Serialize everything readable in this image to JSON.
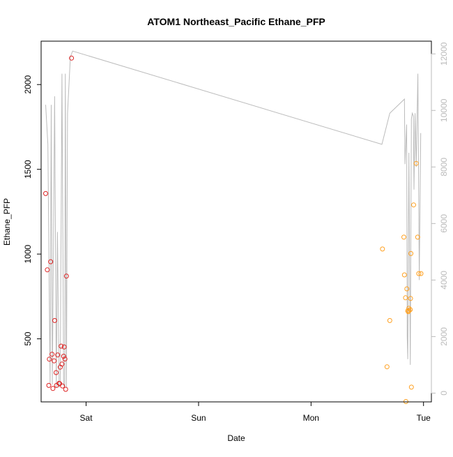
{
  "chart_data": {
    "type": "scatter",
    "title": "ATOM1 Northeast_Pacific Ethane_PFP",
    "xlabel": "Date",
    "ylabel": "Ethane_PFP",
    "x_ticks": [
      {
        "label": "Sat",
        "day": 1.0
      },
      {
        "label": "Sun",
        "day": 2.0
      },
      {
        "label": "Mon",
        "day": 3.0
      },
      {
        "label": "Tue",
        "day": 4.0
      }
    ],
    "xlim_days": [
      0.6,
      4.07
    ],
    "ylim": [
      128,
      2256
    ],
    "y_ticks": [
      500,
      1000,
      1500,
      2000
    ],
    "y2lim": [
      -310,
      12450
    ],
    "y2_ticks": [
      0,
      2000,
      4000,
      6000,
      8000,
      10000,
      12000
    ],
    "colors": {
      "series_red": "#dd2222",
      "series_orange": "#ffa020",
      "secondary_line": "#bbbbbb",
      "axis": "#000000",
      "secondary_axis": "#bbbbbb"
    },
    "series": [
      {
        "color": "series_red",
        "points": [
          {
            "day": 0.64,
            "y": 1357
          },
          {
            "day": 0.655,
            "y": 907
          },
          {
            "day": 0.668,
            "y": 225
          },
          {
            "day": 0.673,
            "y": 380
          },
          {
            "day": 0.685,
            "y": 955
          },
          {
            "day": 0.697,
            "y": 409
          },
          {
            "day": 0.705,
            "y": 207
          },
          {
            "day": 0.715,
            "y": 370
          },
          {
            "day": 0.721,
            "y": 608
          },
          {
            "day": 0.733,
            "y": 301
          },
          {
            "day": 0.737,
            "y": 225
          },
          {
            "day": 0.747,
            "y": 405
          },
          {
            "day": 0.76,
            "y": 237
          },
          {
            "day": 0.765,
            "y": 236
          },
          {
            "day": 0.77,
            "y": 333
          },
          {
            "day": 0.778,
            "y": 457
          },
          {
            "day": 0.785,
            "y": 351
          },
          {
            "day": 0.79,
            "y": 222
          },
          {
            "day": 0.8,
            "y": 397
          },
          {
            "day": 0.805,
            "y": 452
          },
          {
            "day": 0.812,
            "y": 381
          },
          {
            "day": 0.818,
            "y": 202
          },
          {
            "day": 0.825,
            "y": 870
          },
          {
            "day": 0.87,
            "y": 2156
          }
        ]
      },
      {
        "color": "series_orange",
        "points": [
          {
            "day": 3.635,
            "y": 1030
          },
          {
            "day": 3.675,
            "y": 335
          },
          {
            "day": 3.7,
            "y": 608
          },
          {
            "day": 3.825,
            "y": 1100
          },
          {
            "day": 3.83,
            "y": 877
          },
          {
            "day": 3.84,
            "y": 742
          },
          {
            "day": 3.843,
            "y": 130
          },
          {
            "day": 3.852,
            "y": 795
          },
          {
            "day": 3.86,
            "y": 665
          },
          {
            "day": 3.865,
            "y": 660
          },
          {
            "day": 3.869,
            "y": 680
          },
          {
            "day": 3.872,
            "y": 667
          },
          {
            "day": 3.882,
            "y": 672
          },
          {
            "day": 3.885,
            "y": 738
          },
          {
            "day": 3.888,
            "y": 1003
          },
          {
            "day": 3.892,
            "y": 215
          },
          {
            "day": 3.912,
            "y": 1290
          },
          {
            "day": 3.935,
            "y": 1535
          },
          {
            "day": 3.948,
            "y": 1100
          },
          {
            "day": 3.958,
            "y": 885
          },
          {
            "day": 3.977,
            "y": 885
          }
        ]
      }
    ],
    "secondary_line": [
      {
        "day": 0.64,
        "y": 10200
      },
      {
        "day": 0.66,
        "y": 8800
      },
      {
        "day": 0.68,
        "y": 300
      },
      {
        "day": 0.69,
        "y": 10200
      },
      {
        "day": 0.7,
        "y": 300
      },
      {
        "day": 0.72,
        "y": 10500
      },
      {
        "day": 0.735,
        "y": 200
      },
      {
        "day": 0.745,
        "y": 5700
      },
      {
        "day": 0.76,
        "y": 200
      },
      {
        "day": 0.77,
        "y": 300
      },
      {
        "day": 0.785,
        "y": 11300
      },
      {
        "day": 0.8,
        "y": 300
      },
      {
        "day": 0.81,
        "y": 200
      },
      {
        "day": 0.815,
        "y": 11300
      },
      {
        "day": 0.825,
        "y": 200
      },
      {
        "day": 0.835,
        "y": 9900
      },
      {
        "day": 0.86,
        "y": 11900
      },
      {
        "day": 0.88,
        "y": 12100
      },
      {
        "day": 3.63,
        "y": 8800
      },
      {
        "day": 3.7,
        "y": 9900
      },
      {
        "day": 3.83,
        "y": 10400
      },
      {
        "day": 3.835,
        "y": 8100
      },
      {
        "day": 3.85,
        "y": 9500
      },
      {
        "day": 3.855,
        "y": 2000
      },
      {
        "day": 3.86,
        "y": 1200
      },
      {
        "day": 3.87,
        "y": 8500
      },
      {
        "day": 3.882,
        "y": 1000
      },
      {
        "day": 3.892,
        "y": 9700
      },
      {
        "day": 3.9,
        "y": 9900
      },
      {
        "day": 3.91,
        "y": 9800
      },
      {
        "day": 3.915,
        "y": 7200
      },
      {
        "day": 3.925,
        "y": 9900
      },
      {
        "day": 3.935,
        "y": 8000
      },
      {
        "day": 3.95,
        "y": 11300
      },
      {
        "day": 3.962,
        "y": 4000
      },
      {
        "day": 3.975,
        "y": 9200
      }
    ]
  }
}
